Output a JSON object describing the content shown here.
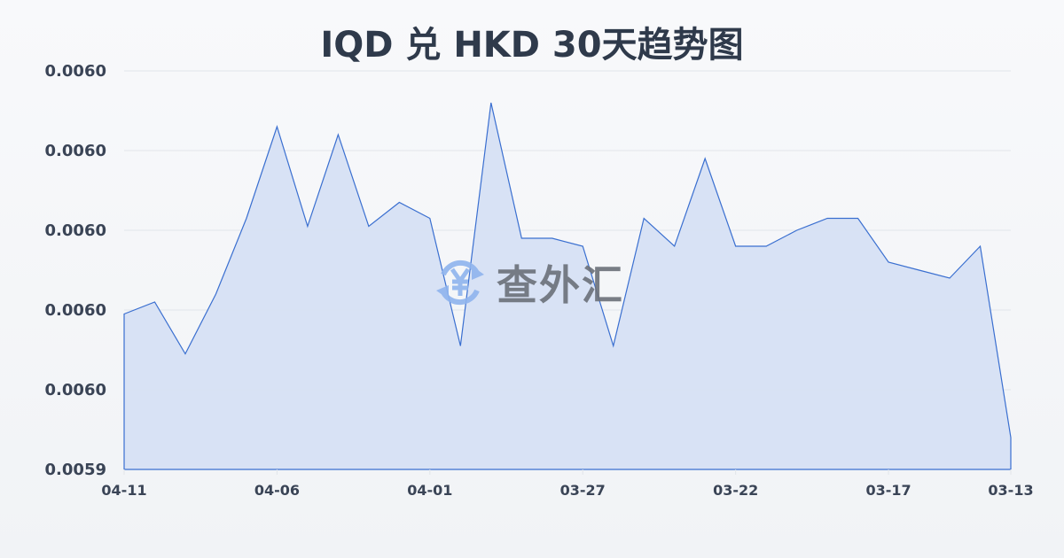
{
  "chart_data": {
    "type": "area",
    "title": "IQD 兑 HKD 30天趋势图",
    "xlabel": "",
    "ylabel": "",
    "ylim": [
      0.00594,
      0.00604
    ],
    "yticks": [
      0.00594,
      0.00596,
      0.00598,
      0.006,
      0.00602,
      0.00604
    ],
    "ytick_labels": [
      "0.0059",
      "0.0060",
      "0.0060",
      "0.0060",
      "0.0060",
      "0.0060"
    ],
    "x": [
      "04-11",
      "04-10",
      "04-09",
      "04-08",
      "04-07",
      "04-06",
      "04-05",
      "04-04",
      "04-03",
      "04-02",
      "04-01",
      "03-31",
      "03-30",
      "03-29",
      "03-28",
      "03-27",
      "03-26",
      "03-25",
      "03-24",
      "03-23",
      "03-22",
      "03-21",
      "03-20",
      "03-19",
      "03-18",
      "03-17",
      "03-16",
      "03-15",
      "03-14",
      "03-13"
    ],
    "xtick_labels": [
      "04-11",
      "04-06",
      "04-01",
      "03-27",
      "03-22",
      "03-17",
      "03-13"
    ],
    "values": [
      0.005979,
      0.005982,
      0.005969,
      0.005984,
      0.006003,
      0.006026,
      0.006001,
      0.006024,
      0.006001,
      0.006007,
      0.006003,
      0.005971,
      0.006032,
      0.005998,
      0.005998,
      0.005996,
      0.005971,
      0.006003,
      0.005996,
      0.006018,
      0.005996,
      0.005996,
      0.006,
      0.006003,
      0.006003,
      0.005992,
      0.00599,
      0.005988,
      0.005996,
      0.005948
    ],
    "grid": true,
    "colors": {
      "line": "#3a6fd0",
      "fill": "#d6e0f4",
      "grid": "#e1e5ea"
    }
  },
  "watermark": {
    "text": "查外汇",
    "icon": "yen-exchange-icon"
  }
}
